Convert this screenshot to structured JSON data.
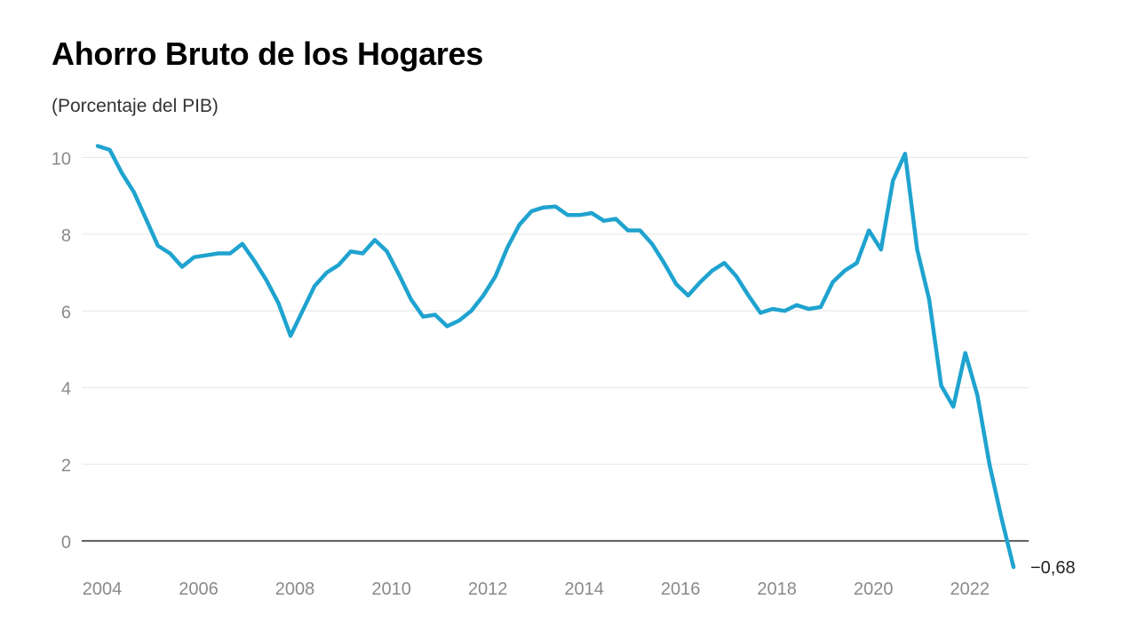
{
  "title": "Ahorro Bruto de los Hogares",
  "subtitle": "(Porcentaje del PIB)",
  "colors": {
    "line": "#1fa3cf",
    "grid": "#e6e6e6",
    "zero_line": "#222222",
    "tick_text": "#8a8a8a"
  },
  "chart_data": {
    "type": "line",
    "title": "Ahorro Bruto de los Hogares",
    "subtitle": "(Porcentaje del PIB)",
    "xlabel": "",
    "ylabel": "",
    "ylim": [
      -0.68,
      10.4
    ],
    "xlim": [
      2004,
      2023
    ],
    "y_ticks": [
      0,
      2,
      4,
      6,
      8,
      10
    ],
    "y_tick_labels": [
      "0",
      "2",
      "4",
      "6",
      "8",
      "10"
    ],
    "x_ticks": [
      2004,
      2006,
      2008,
      2010,
      2012,
      2014,
      2016,
      2018,
      2020,
      2022
    ],
    "x_tick_labels": [
      "2004",
      "2006",
      "2008",
      "2010",
      "2012",
      "2014",
      "2016",
      "2018",
      "2020",
      "2022"
    ],
    "grid": true,
    "legend": "none",
    "end_label": "−0,68",
    "series": [
      {
        "x": [
          2004,
          2004.25,
          2004.5,
          2004.75,
          2005,
          2005.25,
          2005.5,
          2005.75,
          2006,
          2006.25,
          2006.5,
          2006.75,
          2007,
          2007.25,
          2007.5,
          2007.75,
          2008,
          2008.25,
          2008.5,
          2008.75,
          2009,
          2009.25,
          2009.5,
          2009.75,
          2010,
          2010.25,
          2010.5,
          2010.75,
          2011,
          2011.25,
          2011.5,
          2011.75,
          2012,
          2012.25,
          2012.5,
          2012.75,
          2013,
          2013.25,
          2013.5,
          2013.75,
          2014,
          2014.25,
          2014.5,
          2014.75,
          2015,
          2015.25,
          2015.5,
          2015.75,
          2016,
          2016.25,
          2016.5,
          2016.75,
          2017,
          2017.25,
          2017.5,
          2017.75,
          2018,
          2018.25,
          2018.5,
          2018.75,
          2019,
          2019.25,
          2019.5,
          2019.75,
          2020,
          2020.25,
          2020.5,
          2020.75,
          2021,
          2021.25,
          2021.5,
          2021.75,
          2022,
          2022.25,
          2022.5,
          2022.75,
          2023
        ],
        "values": [
          10.3,
          10.2,
          9.6,
          9.1,
          8.4,
          7.7,
          7.5,
          7.15,
          7.4,
          7.45,
          7.5,
          7.5,
          7.75,
          7.3,
          6.8,
          6.2,
          5.35,
          6.0,
          6.65,
          7.0,
          7.2,
          7.55,
          7.5,
          7.85,
          7.55,
          6.95,
          6.3,
          5.85,
          5.9,
          5.6,
          5.75,
          6.0,
          6.4,
          6.9,
          7.65,
          8.25,
          8.6,
          8.7,
          8.72,
          8.5,
          8.5,
          8.55,
          8.35,
          8.4,
          8.1,
          8.1,
          7.75,
          7.25,
          6.7,
          6.4,
          6.75,
          7.05,
          7.25,
          6.9,
          6.4,
          5.95,
          6.05,
          6.0,
          6.15,
          6.05,
          6.1,
          6.75,
          7.05,
          7.25,
          8.1,
          7.6,
          9.4,
          10.1,
          7.6,
          6.3,
          4.05,
          3.5,
          4.9,
          3.8,
          2.0,
          0.6,
          -0.68
        ]
      }
    ]
  }
}
